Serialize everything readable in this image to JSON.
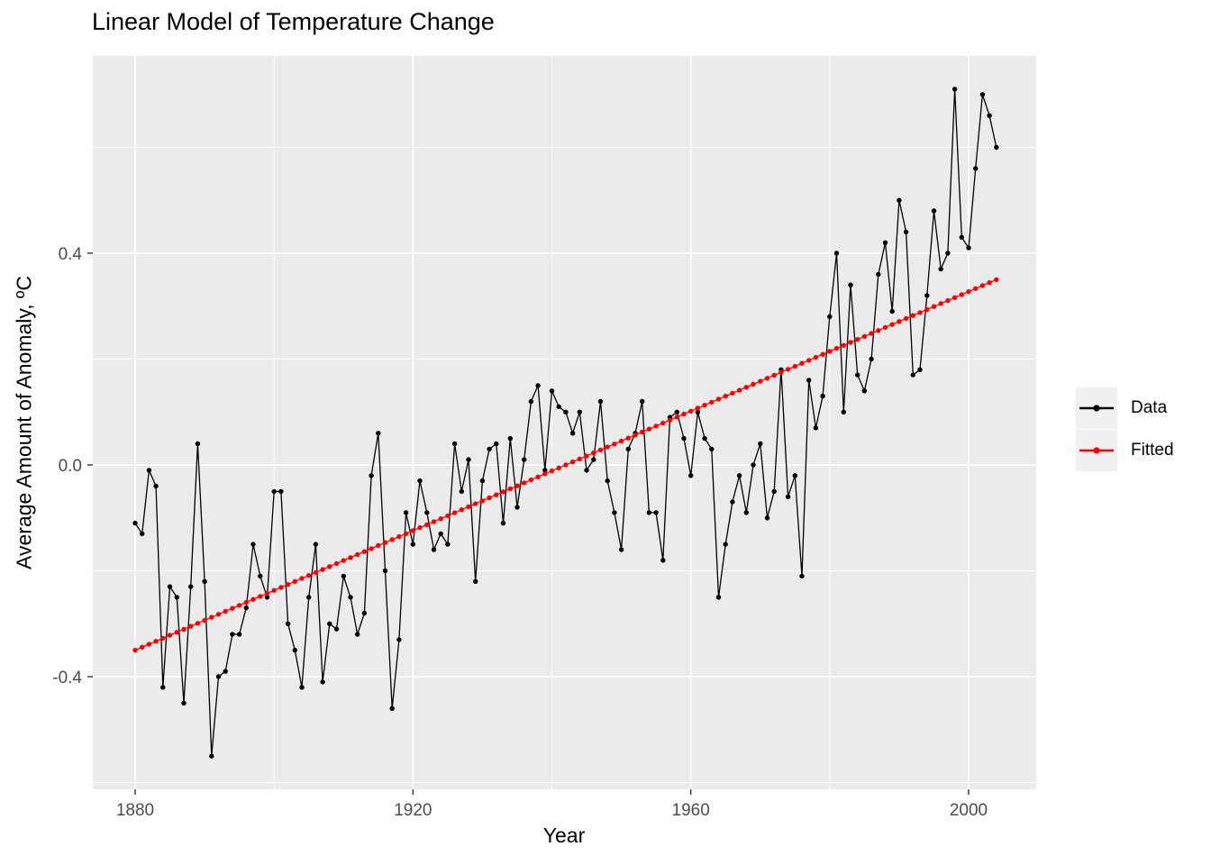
{
  "title": "Linear Model of Temperature Change",
  "chart_data": {
    "type": "line",
    "title": "Linear Model of Temperature Change",
    "xlabel": "Year",
    "ylabel": "Average Amount of Anomaly, ºC",
    "grid": true,
    "legend_position": "right",
    "xlim": [
      1873.8,
      2010.2
    ],
    "ylim": [
      -0.61,
      0.77
    ],
    "x_major_ticks": [
      1880,
      1920,
      1960,
      2000
    ],
    "x_tick_labels": [
      "1880",
      "1920",
      "1960",
      "2000"
    ],
    "x_minor_gridlines": [
      1900,
      1940,
      1980
    ],
    "y_major_ticks": [
      0.4,
      0.0,
      -0.4
    ],
    "y_tick_labels": [
      "0.4",
      "0.0",
      "-0.4"
    ],
    "y_minor_gridlines": [
      0.6,
      0.2,
      -0.2,
      -0.6
    ],
    "x_start": 1880,
    "x_end": 2004,
    "series": [
      {
        "name": "Data",
        "color": "#000000",
        "style": "line+points",
        "values": [
          -0.11,
          -0.13,
          -0.01,
          -0.04,
          -0.42,
          -0.23,
          -0.25,
          -0.45,
          -0.23,
          0.04,
          -0.22,
          -0.55,
          -0.4,
          -0.39,
          -0.32,
          -0.32,
          -0.27,
          -0.15,
          -0.21,
          -0.25,
          -0.05,
          -0.05,
          -0.3,
          -0.35,
          -0.42,
          -0.25,
          -0.15,
          -0.41,
          -0.3,
          -0.31,
          -0.21,
          -0.25,
          -0.32,
          -0.28,
          -0.02,
          0.06,
          -0.2,
          -0.46,
          -0.33,
          -0.09,
          -0.15,
          -0.03,
          -0.09,
          -0.16,
          -0.13,
          -0.15,
          0.04,
          -0.05,
          0.01,
          -0.22,
          -0.03,
          0.03,
          0.04,
          -0.11,
          0.05,
          -0.08,
          0.01,
          0.12,
          0.15,
          -0.01,
          0.14,
          0.11,
          0.1,
          0.06,
          0.1,
          -0.01,
          0.01,
          0.12,
          -0.03,
          -0.09,
          -0.16,
          0.03,
          0.06,
          0.12,
          -0.09,
          -0.09,
          -0.18,
          0.09,
          0.1,
          0.05,
          -0.02,
          0.1,
          0.05,
          0.03,
          -0.25,
          -0.15,
          -0.07,
          -0.02,
          -0.09,
          0.0,
          0.04,
          -0.1,
          -0.05,
          0.18,
          -0.06,
          -0.02,
          -0.21,
          0.16,
          0.07,
          0.13,
          0.28,
          0.4,
          0.1,
          0.34,
          0.17,
          0.14,
          0.2,
          0.36,
          0.42,
          0.29,
          0.5,
          0.44,
          0.17,
          0.18,
          0.32,
          0.48,
          0.37,
          0.4,
          0.71,
          0.43,
          0.41,
          0.56,
          0.7,
          0.66,
          0.6
        ]
      },
      {
        "name": "Fitted",
        "color": "#FF0000",
        "style": "line+points",
        "fit": {
          "year0": 1880,
          "value0": -0.35,
          "year1": 2004,
          "value1": 0.35
        }
      }
    ]
  },
  "legend": {
    "items": [
      {
        "label": "Data",
        "color": "#000000"
      },
      {
        "label": "Fitted",
        "color": "#FF0000"
      }
    ]
  },
  "colors": {
    "page_background": "#FFFFFF",
    "panel_background": "#EBEBEB",
    "gridline": "#FFFFFF",
    "axis_text": "#4D4D4D",
    "tick_mark": "#333333",
    "legend_key_fill": "#F0F0F0",
    "text": "#000000"
  }
}
